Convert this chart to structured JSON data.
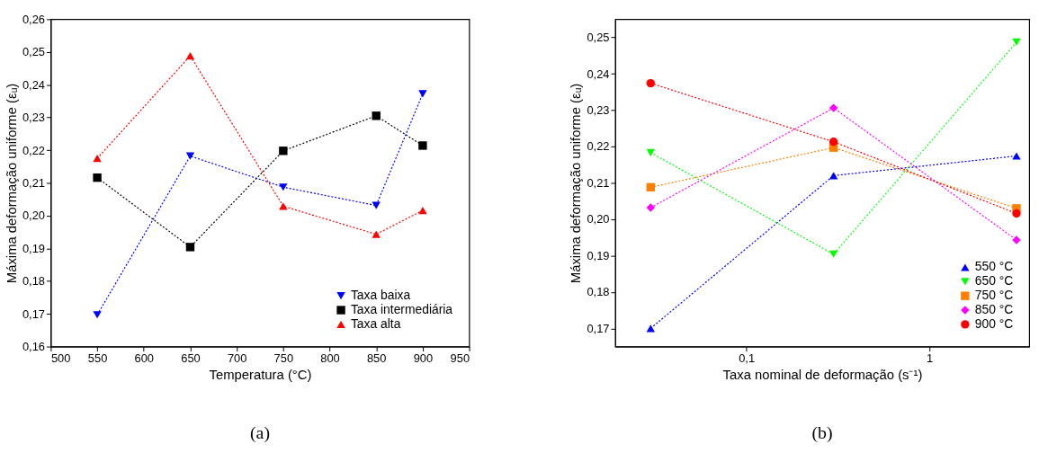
{
  "chart_data": [
    {
      "type": "line",
      "xlabel": "Temperatura (°C)",
      "ylabel": "Máxima deformação uniforme (εᵤ)",
      "annotations": [
        "(a)"
      ],
      "x": [
        550,
        650,
        750,
        850,
        900
      ],
      "series": [
        {
          "name": "Taxa baixa",
          "color": "#0000ff",
          "marker": "triangle-down",
          "values": [
            0.1697,
            0.2182,
            0.2087,
            0.2031,
            0.2372
          ]
        },
        {
          "name": "Taxa intermediária",
          "color": "#000000",
          "marker": "square",
          "values": [
            0.2116,
            0.1904,
            0.2198,
            0.2305,
            0.2214
          ]
        },
        {
          "name": "Taxa alta",
          "color": "#ff0000",
          "marker": "triangle",
          "values": [
            0.2175,
            0.2488,
            0.2029,
            0.1943,
            0.2016
          ]
        }
      ],
      "xlim": [
        500,
        950
      ],
      "xticks": [
        500,
        550,
        600,
        650,
        700,
        750,
        800,
        850,
        900,
        950
      ],
      "ylim": [
        0.16,
        0.26
      ],
      "yticks": [
        {
          "value": 0.16,
          "label": "0,16"
        },
        {
          "value": 0.17,
          "label": "0,17"
        },
        {
          "value": 0.18,
          "label": "0,18"
        },
        {
          "value": 0.19,
          "label": "0,19"
        },
        {
          "value": 0.2,
          "label": "0,20"
        },
        {
          "value": 0.21,
          "label": "0,21"
        },
        {
          "value": 0.22,
          "label": "0,22"
        },
        {
          "value": 0.23,
          "label": "0,23"
        },
        {
          "value": 0.24,
          "label": "0,24"
        },
        {
          "value": 0.25,
          "label": "0,25"
        },
        {
          "value": 0.26,
          "label": "0,26"
        }
      ],
      "line_style": "dotted",
      "grid": false,
      "legend": "bottom right"
    },
    {
      "type": "line",
      "xlabel": "Taxa nominal de deformação (s⁻¹)",
      "ylabel": "Máxima deformação uniforme (εᵤ)",
      "annotations": [
        "(b)"
      ],
      "x": [
        0.03,
        0.3,
        3
      ],
      "series": [
        {
          "name": "550 °C",
          "color": "#0000ff",
          "marker": "triangle",
          "values": [
            0.17,
            0.212,
            0.2174
          ]
        },
        {
          "name": "650 °C",
          "color": "#00ff00",
          "marker": "triangle-down",
          "values": [
            0.2183,
            0.1904,
            0.2487
          ]
        },
        {
          "name": "750 °C",
          "color": "#ff8000",
          "marker": "square",
          "values": [
            0.2088,
            0.2197,
            0.203
          ]
        },
        {
          "name": "850 °C",
          "color": "#ff00ff",
          "marker": "diamond",
          "values": [
            0.2032,
            0.2306,
            0.1943
          ]
        },
        {
          "name": "900 °C",
          "color": "#ff0000",
          "marker": "circle",
          "values": [
            0.2374,
            0.2213,
            0.2016
          ]
        }
      ],
      "log": "x",
      "xlim": [
        0.0192,
        3.52
      ],
      "xticks": [
        {
          "value": 0.1,
          "label": "0,1"
        },
        1
      ],
      "ylim": [
        0.165,
        0.255
      ],
      "yticks": [
        {
          "value": 0.17,
          "label": "0,17"
        },
        {
          "value": 0.18,
          "label": "0,18"
        },
        {
          "value": 0.19,
          "label": "0,19"
        },
        {
          "value": 0.2,
          "label": "0,20"
        },
        {
          "value": 0.21,
          "label": "0,21"
        },
        {
          "value": 0.22,
          "label": "0,22"
        },
        {
          "value": 0.23,
          "label": "0,23"
        },
        {
          "value": 0.24,
          "label": "0,24"
        },
        {
          "value": 0.25,
          "label": "0,25"
        }
      ],
      "line_style": "dotted",
      "grid": false,
      "legend": "bottom right"
    }
  ]
}
